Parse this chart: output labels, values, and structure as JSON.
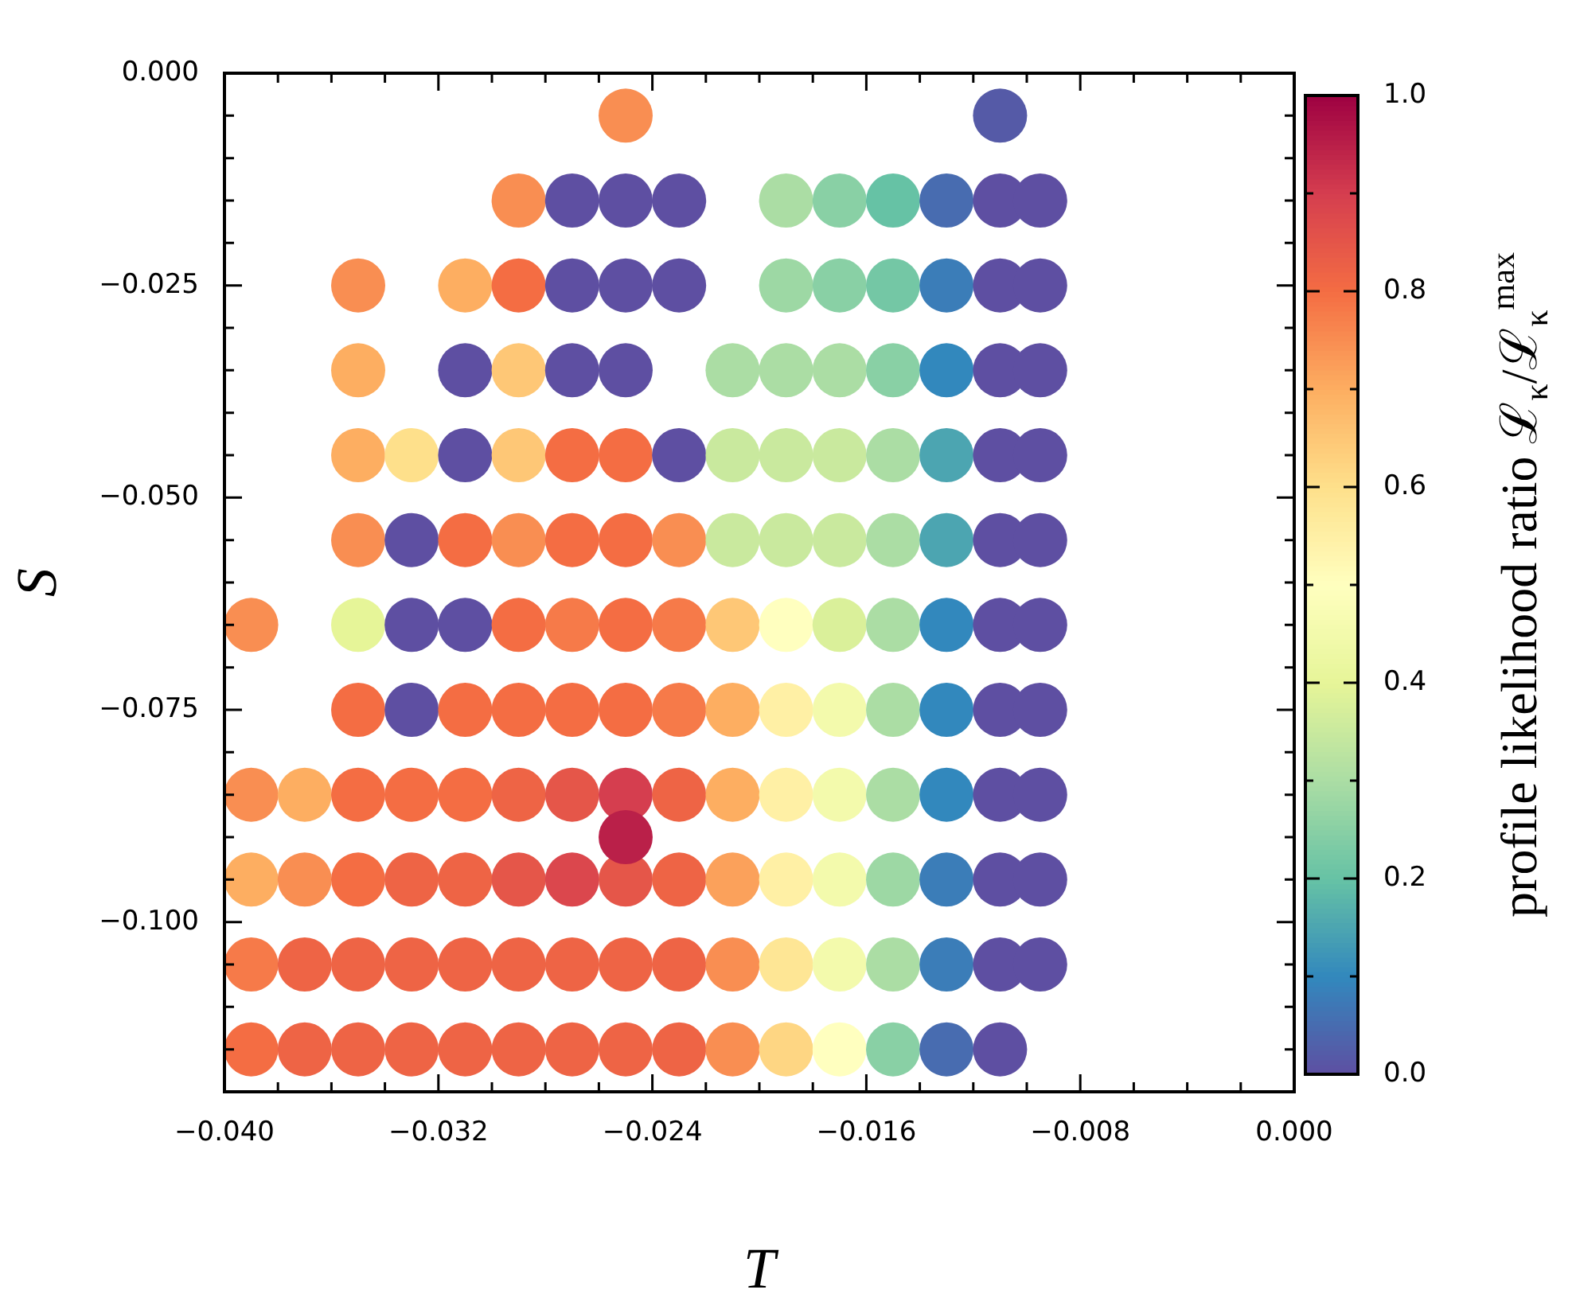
{
  "chart_data": {
    "type": "scatter",
    "xlabel": "T",
    "ylabel": "S",
    "clabel": "profile likelihood ratio ℒ$_{κ}$/ℒ$_{κ}$$^{max}$",
    "marker": "circle",
    "xlim": [
      -0.04,
      0
    ],
    "ylim": [
      -0.12,
      0
    ],
    "clim": [
      0,
      1
    ],
    "xticks": [
      {
        "value": -0.04,
        "label": "−0.040"
      },
      {
        "value": -0.038,
        "label": null
      },
      {
        "value": -0.036,
        "label": null
      },
      {
        "value": -0.034,
        "label": null
      },
      {
        "value": -0.032,
        "label": "−0.032"
      },
      {
        "value": -0.03,
        "label": null
      },
      {
        "value": -0.028,
        "label": null
      },
      {
        "value": -0.026,
        "label": null
      },
      {
        "value": -0.024,
        "label": "−0.024"
      },
      {
        "value": -0.022,
        "label": null
      },
      {
        "value": -0.02,
        "label": null
      },
      {
        "value": -0.018,
        "label": null
      },
      {
        "value": -0.016,
        "label": "−0.016"
      },
      {
        "value": -0.014,
        "label": null
      },
      {
        "value": -0.012,
        "label": null
      },
      {
        "value": -0.01,
        "label": null
      },
      {
        "value": -0.008,
        "label": "−0.008"
      },
      {
        "value": -0.006,
        "label": null
      },
      {
        "value": -0.004,
        "label": null
      },
      {
        "value": -0.002,
        "label": null
      },
      {
        "value": 0,
        "label": "0.000"
      }
    ],
    "yticks": [
      {
        "value": -0.12,
        "label": null
      },
      {
        "value": -0.115,
        "label": null
      },
      {
        "value": -0.11,
        "label": null
      },
      {
        "value": -0.105,
        "label": null
      },
      {
        "value": -0.1,
        "label": "−0.100"
      },
      {
        "value": -0.095,
        "label": null
      },
      {
        "value": -0.09,
        "label": null
      },
      {
        "value": -0.085,
        "label": null
      },
      {
        "value": -0.08,
        "label": null
      },
      {
        "value": -0.075,
        "label": "−0.075"
      },
      {
        "value": -0.07,
        "label": null
      },
      {
        "value": -0.065,
        "label": null
      },
      {
        "value": -0.06,
        "label": null
      },
      {
        "value": -0.055,
        "label": null
      },
      {
        "value": -0.05,
        "label": "−0.050"
      },
      {
        "value": -0.045,
        "label": null
      },
      {
        "value": -0.04,
        "label": null
      },
      {
        "value": -0.035,
        "label": null
      },
      {
        "value": -0.03,
        "label": null
      },
      {
        "value": -0.025,
        "label": "−0.025"
      },
      {
        "value": -0.02,
        "label": null
      },
      {
        "value": -0.015,
        "label": null
      },
      {
        "value": -0.01,
        "label": null
      },
      {
        "value": -0.005,
        "label": null
      },
      {
        "value": 0,
        "label": "0.000"
      }
    ],
    "cticks": [
      {
        "value": 0,
        "label": "0.0"
      },
      {
        "value": 0.1,
        "label": null
      },
      {
        "value": 0.2,
        "label": "0.2"
      },
      {
        "value": 0.3,
        "label": null
      },
      {
        "value": 0.4,
        "label": "0.4"
      },
      {
        "value": 0.5,
        "label": null
      },
      {
        "value": 0.6,
        "label": "0.6"
      },
      {
        "value": 0.7,
        "label": null
      },
      {
        "value": 0.8,
        "label": "0.8"
      },
      {
        "value": 0.9,
        "label": null
      },
      {
        "value": 1,
        "label": "1.0"
      }
    ],
    "x": [
      -0.025,
      -0.011,
      -0.029,
      -0.027,
      -0.025,
      -0.023,
      -0.019,
      -0.017,
      -0.015,
      -0.013,
      -0.011,
      -0.0095,
      -0.035,
      -0.031,
      -0.029,
      -0.027,
      -0.025,
      -0.023,
      -0.019,
      -0.017,
      -0.015,
      -0.013,
      -0.011,
      -0.0095,
      -0.035,
      -0.031,
      -0.029,
      -0.027,
      -0.025,
      -0.021,
      -0.019,
      -0.017,
      -0.015,
      -0.013,
      -0.011,
      -0.0095,
      -0.035,
      -0.033,
      -0.031,
      -0.029,
      -0.027,
      -0.025,
      -0.023,
      -0.021,
      -0.019,
      -0.017,
      -0.015,
      -0.013,
      -0.011,
      -0.0095,
      -0.035,
      -0.033,
      -0.031,
      -0.029,
      -0.027,
      -0.025,
      -0.023,
      -0.021,
      -0.019,
      -0.017,
      -0.015,
      -0.013,
      -0.011,
      -0.0095,
      -0.039,
      -0.035,
      -0.033,
      -0.031,
      -0.029,
      -0.027,
      -0.025,
      -0.023,
      -0.021,
      -0.019,
      -0.017,
      -0.015,
      -0.013,
      -0.011,
      -0.0095,
      -0.035,
      -0.033,
      -0.031,
      -0.029,
      -0.027,
      -0.025,
      -0.023,
      -0.021,
      -0.019,
      -0.017,
      -0.015,
      -0.013,
      -0.011,
      -0.0095,
      -0.039,
      -0.037,
      -0.035,
      -0.033,
      -0.031,
      -0.029,
      -0.027,
      -0.025,
      -0.023,
      -0.021,
      -0.019,
      -0.017,
      -0.015,
      -0.013,
      -0.011,
      -0.0095,
      -0.039,
      -0.037,
      -0.035,
      -0.033,
      -0.031,
      -0.029,
      -0.027,
      -0.025,
      -0.023,
      -0.021,
      -0.019,
      -0.017,
      -0.015,
      -0.013,
      -0.011,
      -0.0095,
      -0.039,
      -0.037,
      -0.035,
      -0.033,
      -0.031,
      -0.029,
      -0.027,
      -0.025,
      -0.023,
      -0.021,
      -0.019,
      -0.017,
      -0.015,
      -0.013,
      -0.011,
      -0.0095,
      -0.039,
      -0.037,
      -0.035,
      -0.033,
      -0.031,
      -0.029,
      -0.027,
      -0.025,
      -0.023,
      -0.021,
      -0.019,
      -0.017,
      -0.015,
      -0.013,
      -0.011,
      -0.025
    ],
    "values": [
      -0.005,
      -0.005,
      -0.015,
      -0.015,
      -0.015,
      -0.015,
      -0.015,
      -0.015,
      -0.015,
      -0.015,
      -0.015,
      -0.015,
      -0.025,
      -0.025,
      -0.025,
      -0.025,
      -0.025,
      -0.025,
      -0.025,
      -0.025,
      -0.025,
      -0.025,
      -0.025,
      -0.025,
      -0.035,
      -0.035,
      -0.035,
      -0.035,
      -0.035,
      -0.035,
      -0.035,
      -0.035,
      -0.035,
      -0.035,
      -0.035,
      -0.035,
      -0.045,
      -0.045,
      -0.045,
      -0.045,
      -0.045,
      -0.045,
      -0.045,
      -0.045,
      -0.045,
      -0.045,
      -0.045,
      -0.045,
      -0.045,
      -0.045,
      -0.055,
      -0.055,
      -0.055,
      -0.055,
      -0.055,
      -0.055,
      -0.055,
      -0.055,
      -0.055,
      -0.055,
      -0.055,
      -0.055,
      -0.055,
      -0.055,
      -0.065,
      -0.065,
      -0.065,
      -0.065,
      -0.065,
      -0.065,
      -0.065,
      -0.065,
      -0.065,
      -0.065,
      -0.065,
      -0.065,
      -0.065,
      -0.065,
      -0.065,
      -0.075,
      -0.075,
      -0.075,
      -0.075,
      -0.075,
      -0.075,
      -0.075,
      -0.075,
      -0.075,
      -0.075,
      -0.075,
      -0.075,
      -0.075,
      -0.075,
      -0.085,
      -0.085,
      -0.085,
      -0.085,
      -0.085,
      -0.085,
      -0.085,
      -0.085,
      -0.085,
      -0.085,
      -0.085,
      -0.085,
      -0.085,
      -0.085,
      -0.085,
      -0.085,
      -0.095,
      -0.095,
      -0.095,
      -0.095,
      -0.095,
      -0.095,
      -0.095,
      -0.095,
      -0.095,
      -0.095,
      -0.095,
      -0.095,
      -0.095,
      -0.095,
      -0.095,
      -0.095,
      -0.105,
      -0.105,
      -0.105,
      -0.105,
      -0.105,
      -0.105,
      -0.105,
      -0.105,
      -0.105,
      -0.105,
      -0.105,
      -0.105,
      -0.105,
      -0.105,
      -0.105,
      -0.105,
      -0.115,
      -0.115,
      -0.115,
      -0.115,
      -0.115,
      -0.115,
      -0.115,
      -0.115,
      -0.115,
      -0.115,
      -0.115,
      -0.115,
      -0.115,
      -0.115,
      -0.115,
      -0.09
    ],
    "cvalues": [
      0.75,
      0.02,
      0.75,
      0,
      0,
      0,
      0.3,
      0.25,
      0.2,
      0.05,
      0,
      0,
      0.75,
      0.7,
      0.8,
      0,
      0,
      0,
      0.28,
      0.25,
      0.22,
      0.08,
      0,
      0,
      0.7,
      0,
      0.65,
      0,
      0,
      0.3,
      0.3,
      0.3,
      0.25,
      0.1,
      0,
      0,
      0.7,
      0.6,
      0,
      0.65,
      0.8,
      0.8,
      0,
      0.35,
      0.35,
      0.35,
      0.3,
      0.15,
      0,
      0,
      0.75,
      0,
      0.8,
      0.75,
      0.8,
      0.8,
      0.75,
      0.35,
      0.35,
      0.35,
      0.3,
      0.15,
      0,
      0,
      0.75,
      0.4,
      0,
      0,
      0.8,
      0.78,
      0.8,
      0.78,
      0.65,
      0.5,
      0.38,
      0.3,
      0.1,
      0,
      0,
      0.8,
      0,
      0.8,
      0.8,
      0.8,
      0.8,
      0.78,
      0.7,
      0.55,
      0.45,
      0.3,
      0.1,
      0,
      0,
      0.75,
      0.7,
      0.8,
      0.8,
      0.8,
      0.82,
      0.85,
      0.9,
      0.82,
      0.7,
      0.55,
      0.45,
      0.3,
      0.1,
      0,
      0,
      0.7,
      0.75,
      0.8,
      0.82,
      0.82,
      0.85,
      0.88,
      0.85,
      0.82,
      0.72,
      0.55,
      0.45,
      0.28,
      0.08,
      0,
      0,
      0.78,
      0.82,
      0.82,
      0.82,
      0.82,
      0.82,
      0.82,
      0.82,
      0.82,
      0.75,
      0.58,
      0.45,
      0.3,
      0.08,
      0,
      0,
      0.8,
      0.82,
      0.82,
      0.82,
      0.82,
      0.82,
      0.82,
      0.82,
      0.82,
      0.75,
      0.62,
      0.5,
      0.25,
      0.05,
      0,
      0.95
    ]
  }
}
